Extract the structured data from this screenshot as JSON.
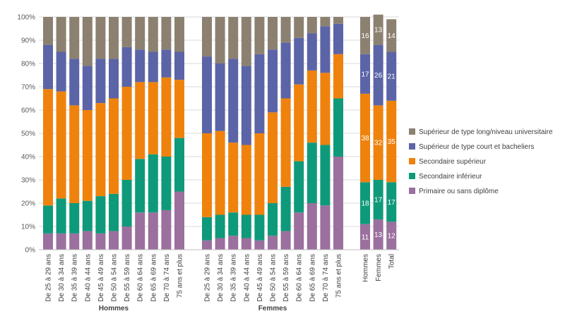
{
  "chart_data": {
    "type": "bar",
    "stacked": true,
    "percent": true,
    "ylim": [
      0,
      100
    ],
    "y_ticks": [
      "0%",
      "10%",
      "20%",
      "30%",
      "40%",
      "50%",
      "60%",
      "70%",
      "80%",
      "90%",
      "100%"
    ],
    "legend_position": "right",
    "groups": [
      {
        "label": "Hommes",
        "categories": [
          "De 25 à 29 ans",
          "De 30 à 34 ans",
          "De 35 à 39 ans",
          "De 40 à 44 ans",
          "De 45 à 49 ans",
          "De 50 à 54 ans",
          "De 55 à 59 ans",
          "De 60 à 64 ans",
          "De 65 à 69 ans",
          "De 70 à 74 ans",
          "75 ans et plus"
        ],
        "values": {
          "primaire": [
            7,
            7,
            7,
            8,
            7,
            8,
            10,
            16,
            16,
            17,
            25
          ],
          "sec_inf": [
            12,
            15,
            13,
            13,
            16,
            16,
            20,
            23,
            25,
            23,
            23
          ],
          "sec_sup": [
            50,
            46,
            42,
            39,
            40,
            41,
            40,
            33,
            31,
            34,
            25
          ],
          "sup_court": [
            19,
            17,
            20,
            19,
            19,
            17,
            17,
            14,
            13,
            12,
            12
          ],
          "sup_long": [
            12,
            15,
            18,
            21,
            18,
            18,
            13,
            14,
            15,
            14,
            15
          ]
        }
      },
      {
        "label": "Femmes",
        "categories": [
          "De 25 à 29 ans",
          "De 30 à 34 ans",
          "De 35 à 39 ans",
          "De 40 à 44 ans",
          "De 45 à 49 ans",
          "De 50 à 54 ans",
          "De 55 à 59 ans",
          "De 60 à 64 ans",
          "De 65 à 69 ans",
          "De 70 à 74 ans",
          "75 ans et plus"
        ],
        "values": {
          "primaire": [
            4,
            5,
            6,
            5,
            4,
            6,
            8,
            16,
            20,
            19,
            40
          ],
          "sec_inf": [
            10,
            10,
            10,
            10,
            11,
            14,
            19,
            22,
            26,
            26,
            25
          ],
          "sec_sup": [
            36,
            36,
            30,
            30,
            35,
            39,
            38,
            33,
            31,
            31,
            19
          ],
          "sup_court": [
            33,
            29,
            36,
            34,
            34,
            27,
            24,
            20,
            16,
            20,
            13
          ],
          "sup_long": [
            17,
            20,
            18,
            21,
            16,
            14,
            11,
            9,
            7,
            4,
            3
          ]
        }
      },
      {
        "label": "",
        "categories": [
          "Hommes",
          "Femmes",
          "Total"
        ],
        "show_data_labels": true,
        "values": {
          "primaire": [
            11,
            13,
            12
          ],
          "sec_inf": [
            18,
            17,
            17
          ],
          "sec_sup": [
            38,
            32,
            35
          ],
          "sup_court": [
            17,
            26,
            21
          ],
          "sup_long": [
            16,
            13,
            14
          ]
        }
      }
    ],
    "series": [
      {
        "key": "primaire",
        "name": "Primaire ou sans diplôme",
        "color": "#9b6f9e"
      },
      {
        "key": "sec_inf",
        "name": "Secondaire inférieur",
        "color": "#0e9a7a"
      },
      {
        "key": "sec_sup",
        "name": "Secondaire supérieur",
        "color": "#ef820d"
      },
      {
        "key": "sup_court",
        "name": "Supérieur de type court et bacheliers",
        "color": "#5b64a6"
      },
      {
        "key": "sup_long",
        "name": "Supérieur de type long/niveau universitaire",
        "color": "#8c8170"
      }
    ]
  }
}
